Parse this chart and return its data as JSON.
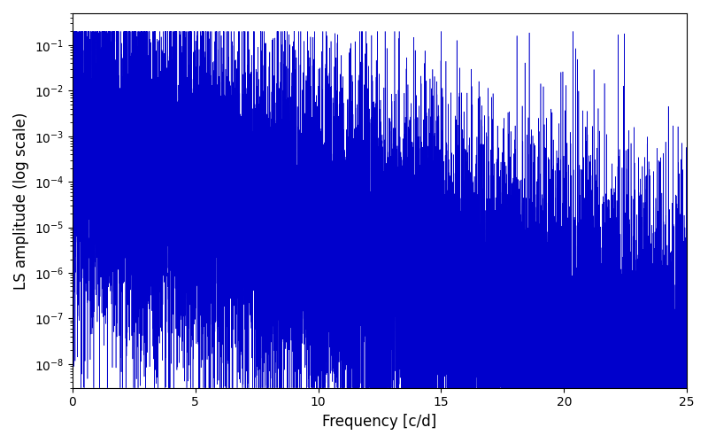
{
  "xlabel": "Frequency [c/d]",
  "ylabel": "LS amplitude (log scale)",
  "xlim": [
    0,
    25
  ],
  "ylim_log": [
    3e-09,
    0.5
  ],
  "line_color": "#0000cc",
  "background_color": "#ffffff",
  "figsize": [
    8.0,
    5.0
  ],
  "dpi": 100,
  "seed": 12345,
  "n_points": 15000,
  "freq_max": 25.0,
  "base_amplitude": 0.0005,
  "decay_slope": 5.0,
  "noise_std_log": 2.0
}
